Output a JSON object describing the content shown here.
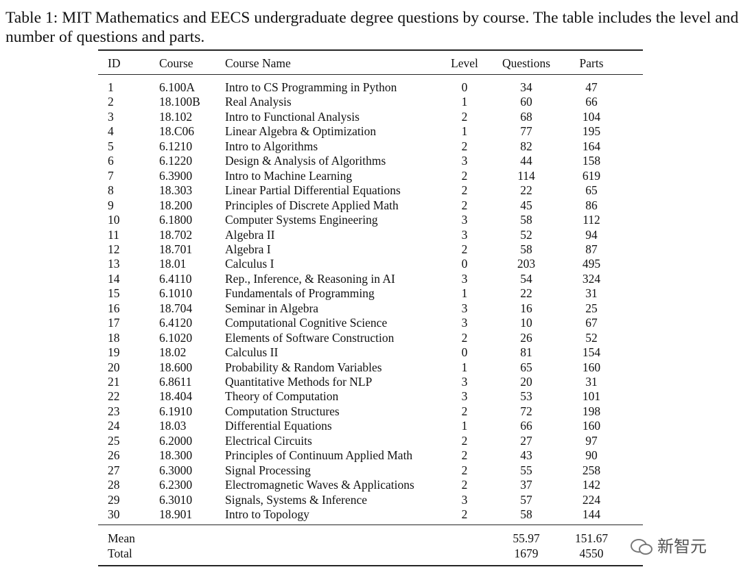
{
  "caption": "Table 1: MIT Mathematics and EECS undergraduate degree questions by course. The table includes the level and number of questions and parts.",
  "table": {
    "header": [
      "ID",
      "Course",
      "Course Name",
      "Level",
      "Questions",
      "Parts"
    ],
    "rows": [
      [
        1,
        "6.100A",
        "Intro to CS Programming in Python",
        0,
        34,
        47
      ],
      [
        2,
        "18.100B",
        "Real Analysis",
        1,
        60,
        66
      ],
      [
        3,
        "18.102",
        "Intro to Functional Analysis",
        2,
        68,
        104
      ],
      [
        4,
        "18.C06",
        "Linear Algebra & Optimization",
        1,
        77,
        195
      ],
      [
        5,
        "6.1210",
        "Intro to Algorithms",
        2,
        82,
        164
      ],
      [
        6,
        "6.1220",
        "Design & Analysis of Algorithms",
        3,
        44,
        158
      ],
      [
        7,
        "6.3900",
        "Intro to Machine Learning",
        2,
        114,
        619
      ],
      [
        8,
        "18.303",
        "Linear Partial Differential Equations",
        2,
        22,
        65
      ],
      [
        9,
        "18.200",
        "Principles of Discrete Applied Math",
        2,
        45,
        86
      ],
      [
        10,
        "6.1800",
        "Computer Systems Engineering",
        3,
        58,
        112
      ],
      [
        11,
        "18.702",
        "Algebra II",
        3,
        52,
        94
      ],
      [
        12,
        "18.701",
        "Algebra I",
        2,
        58,
        87
      ],
      [
        13,
        "18.01",
        "Calculus I",
        0,
        203,
        495
      ],
      [
        14,
        "6.4110",
        "Rep., Inference, & Reasoning in AI",
        3,
        54,
        324
      ],
      [
        15,
        "6.1010",
        "Fundamentals of Programming",
        1,
        22,
        31
      ],
      [
        16,
        "18.704",
        "Seminar in Algebra",
        3,
        16,
        25
      ],
      [
        17,
        "6.4120",
        "Computational Cognitive Science",
        3,
        10,
        67
      ],
      [
        18,
        "6.1020",
        "Elements of Software Construction",
        2,
        26,
        52
      ],
      [
        19,
        "18.02",
        "Calculus II",
        0,
        81,
        154
      ],
      [
        20,
        "18.600",
        "Probability & Random Variables",
        1,
        65,
        160
      ],
      [
        21,
        "6.8611",
        "Quantitative Methods for NLP",
        3,
        20,
        31
      ],
      [
        22,
        "18.404",
        "Theory of Computation",
        3,
        53,
        101
      ],
      [
        23,
        "6.1910",
        "Computation Structures",
        2,
        72,
        198
      ],
      [
        24,
        "18.03",
        "Differential Equations",
        1,
        66,
        160
      ],
      [
        25,
        "6.2000",
        "Electrical Circuits",
        2,
        27,
        97
      ],
      [
        26,
        "18.300",
        "Principles of Continuum Applied Math",
        2,
        43,
        90
      ],
      [
        27,
        "6.3000",
        "Signal Processing",
        2,
        55,
        258
      ],
      [
        28,
        "6.2300",
        "Electromagnetic Waves & Applications",
        2,
        37,
        142
      ],
      [
        29,
        "6.3010",
        "Signals, Systems & Inference",
        3,
        57,
        224
      ],
      [
        30,
        "18.901",
        "Intro to Topology",
        2,
        58,
        144
      ]
    ],
    "footer": [
      [
        "Mean",
        55.97,
        151.67
      ],
      [
        "Total",
        1679,
        4550
      ]
    ]
  },
  "watermark": "新智元"
}
